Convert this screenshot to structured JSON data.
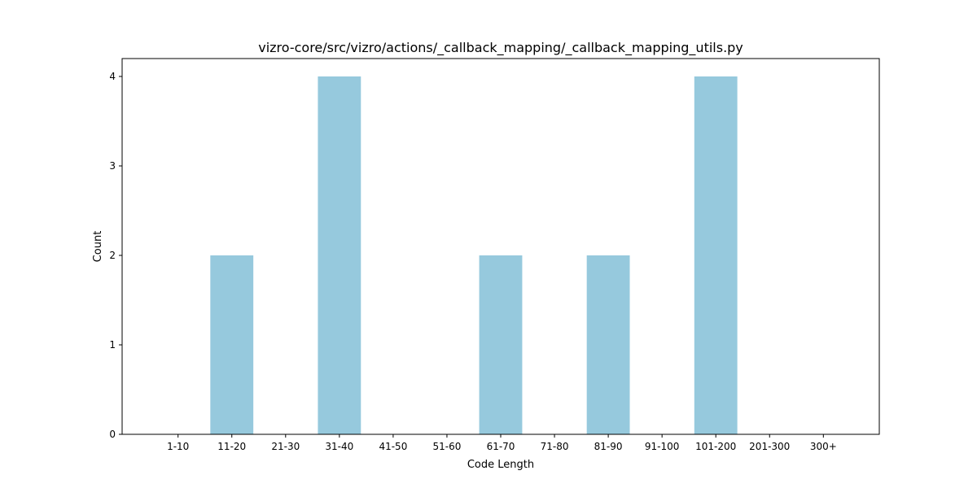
{
  "chart_data": {
    "type": "bar",
    "title": "vizro-core/src/vizro/actions/_callback_mapping/_callback_mapping_utils.py",
    "xlabel": "Code Length",
    "ylabel": "Count",
    "categories": [
      "1-10",
      "11-20",
      "21-30",
      "31-40",
      "41-50",
      "51-60",
      "61-70",
      "71-80",
      "81-90",
      "91-100",
      "101-200",
      "201-300",
      "300+"
    ],
    "values": [
      0,
      2,
      0,
      4,
      0,
      0,
      2,
      0,
      2,
      0,
      4,
      0,
      0
    ],
    "ylim": [
      0,
      4.2
    ],
    "yticks": [
      "0",
      "1",
      "2",
      "3",
      "4"
    ],
    "grid": false,
    "bar_color": "#96c9dd"
  }
}
